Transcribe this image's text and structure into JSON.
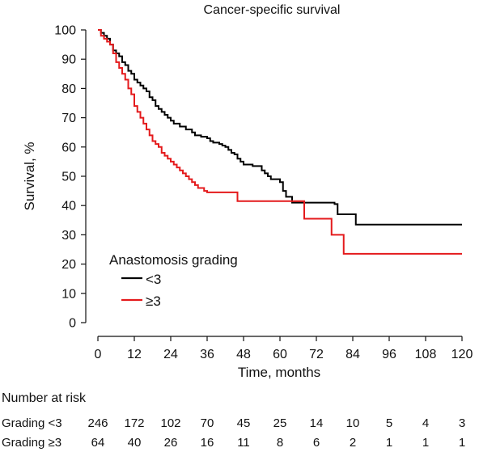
{
  "chart_data": {
    "type": "line",
    "step": true,
    "title": "Cancer-specific survival",
    "xlabel": "Time, months",
    "ylabel": "Survival, %",
    "xlim": [
      0,
      120
    ],
    "ylim": [
      0,
      100
    ],
    "xticks": [
      "0",
      "12",
      "24",
      "36",
      "48",
      "60",
      "72",
      "84",
      "96",
      "108",
      "120"
    ],
    "yticks": [
      "0",
      "10",
      "20",
      "30",
      "40",
      "50",
      "60",
      "70",
      "80",
      "90",
      "100"
    ],
    "legend": {
      "title": "Anastomosis grading",
      "placement": "center-left"
    },
    "series": [
      {
        "name": "<3",
        "color": "#000000",
        "points": [
          [
            0,
            100
          ],
          [
            1,
            99
          ],
          [
            2,
            98
          ],
          [
            3,
            97
          ],
          [
            4,
            95
          ],
          [
            5,
            93
          ],
          [
            6,
            92
          ],
          [
            7,
            91
          ],
          [
            8,
            89
          ],
          [
            9,
            88
          ],
          [
            10,
            86
          ],
          [
            11,
            85
          ],
          [
            12,
            83
          ],
          [
            13,
            82
          ],
          [
            14,
            81
          ],
          [
            15,
            80
          ],
          [
            16,
            79
          ],
          [
            17,
            77
          ],
          [
            18,
            76
          ],
          [
            19,
            74
          ],
          [
            20,
            73
          ],
          [
            21,
            72
          ],
          [
            22,
            71
          ],
          [
            23,
            70
          ],
          [
            24,
            69
          ],
          [
            25,
            68
          ],
          [
            27,
            67
          ],
          [
            29,
            66
          ],
          [
            31,
            65
          ],
          [
            32,
            64
          ],
          [
            34,
            63.5
          ],
          [
            36,
            63
          ],
          [
            37,
            62
          ],
          [
            38,
            61.5
          ],
          [
            40,
            61
          ],
          [
            41,
            60.5
          ],
          [
            42,
            60
          ],
          [
            43,
            59
          ],
          [
            44,
            58
          ],
          [
            45,
            57.5
          ],
          [
            46,
            56
          ],
          [
            47,
            55
          ],
          [
            48,
            54
          ],
          [
            51,
            53.5
          ],
          [
            54,
            52
          ],
          [
            55,
            51
          ],
          [
            56,
            50
          ],
          [
            57,
            49
          ],
          [
            60,
            48
          ],
          [
            61,
            45
          ],
          [
            62,
            43
          ],
          [
            64,
            41
          ],
          [
            67,
            41
          ],
          [
            78,
            40.5
          ],
          [
            79,
            37
          ],
          [
            84,
            37
          ],
          [
            85,
            33.5
          ],
          [
            120,
            33.5
          ]
        ]
      },
      {
        "name": "≥3",
        "color": "#e41a1c",
        "points": [
          [
            0,
            100
          ],
          [
            1,
            98
          ],
          [
            2,
            97
          ],
          [
            3,
            96
          ],
          [
            4,
            95
          ],
          [
            5,
            92
          ],
          [
            6,
            89
          ],
          [
            7,
            87
          ],
          [
            8,
            85
          ],
          [
            9,
            83
          ],
          [
            10,
            80
          ],
          [
            11,
            78
          ],
          [
            12,
            74
          ],
          [
            13,
            72
          ],
          [
            14,
            70
          ],
          [
            15,
            68
          ],
          [
            16,
            66
          ],
          [
            17,
            64
          ],
          [
            18,
            62
          ],
          [
            19,
            61
          ],
          [
            20,
            60
          ],
          [
            21,
            58
          ],
          [
            22,
            57
          ],
          [
            23,
            56
          ],
          [
            24,
            55
          ],
          [
            25,
            54
          ],
          [
            26,
            53
          ],
          [
            27,
            52
          ],
          [
            28,
            51
          ],
          [
            29,
            50
          ],
          [
            30,
            49
          ],
          [
            31,
            48
          ],
          [
            32,
            47
          ],
          [
            33,
            46
          ],
          [
            35,
            45
          ],
          [
            36,
            44.5
          ],
          [
            45,
            44.5
          ],
          [
            46,
            41.5
          ],
          [
            67,
            41.5
          ],
          [
            68,
            35.5
          ],
          [
            76,
            35.5
          ],
          [
            77,
            30
          ],
          [
            80,
            30
          ],
          [
            81,
            23.5
          ],
          [
            120,
            23.5
          ]
        ]
      }
    ]
  },
  "risk_table": {
    "title": "Number at risk",
    "rows": [
      {
        "label": "Grading <3",
        "values": [
          "246",
          "172",
          "102",
          "70",
          "45",
          "25",
          "14",
          "10",
          "5",
          "4",
          "3"
        ]
      },
      {
        "label": "Grading ≥3",
        "values": [
          "64",
          "40",
          "26",
          "16",
          "11",
          "8",
          "6",
          "2",
          "1",
          "1",
          "1"
        ]
      }
    ]
  }
}
